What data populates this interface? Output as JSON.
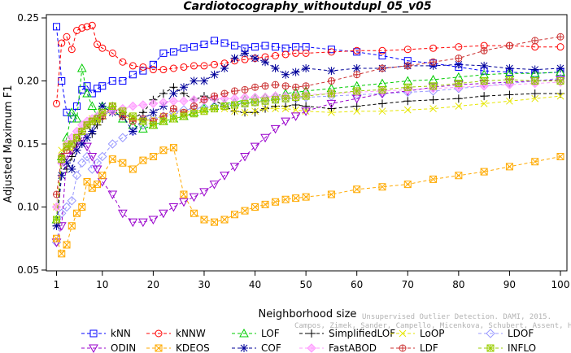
{
  "chart_data": {
    "type": "line",
    "title": "Cardiotocography_withoutdupl_05_v05",
    "xlabel": "Neighborhood size",
    "ylabel": "Adjusted Maximum F1",
    "xlim": [
      1,
      100
    ],
    "ylim": [
      0.05,
      0.25
    ],
    "xticks": [
      1,
      10,
      20,
      30,
      40,
      50,
      60,
      70,
      80,
      90,
      100
    ],
    "yticks": [
      0.05,
      0.1,
      0.15,
      0.2,
      0.25
    ],
    "xtick_labels": [
      "1",
      "10",
      "20",
      "30",
      "40",
      "50",
      "60",
      "70",
      "80",
      "90",
      "100"
    ],
    "ytick_labels": [
      "0.05",
      "0.10",
      "0.15",
      "0.20",
      "0.25"
    ],
    "grid": false,
    "legend_position": "bottom",
    "watermark": {
      "line1": "Unsupervised Outlier Detection. DAMI, 2015.",
      "line2": "Campos, Zimek, Sander, Campello, Micenkova, Schubert, Assent, Houle"
    },
    "series": [
      {
        "name": "kNN",
        "color": "#0000ff",
        "marker": "square",
        "x": [
          1,
          2,
          3,
          4,
          5,
          6,
          7,
          8,
          9,
          10,
          12,
          14,
          16,
          18,
          20,
          22,
          24,
          26,
          28,
          30,
          32,
          34,
          36,
          38,
          40,
          42,
          44,
          46,
          48,
          50,
          55,
          60,
          65,
          70,
          75,
          80,
          85,
          90,
          95,
          100
        ],
        "values": [
          0.243,
          0.2,
          0.175,
          0.17,
          0.18,
          0.193,
          0.196,
          0.19,
          0.194,
          0.196,
          0.2,
          0.2,
          0.205,
          0.208,
          0.213,
          0.222,
          0.223,
          0.226,
          0.227,
          0.229,
          0.232,
          0.23,
          0.228,
          0.226,
          0.227,
          0.228,
          0.227,
          0.226,
          0.227,
          0.227,
          0.225,
          0.223,
          0.22,
          0.216,
          0.214,
          0.211,
          0.208,
          0.207,
          0.206,
          0.207
        ]
      },
      {
        "name": "kNNW",
        "color": "#ff0000",
        "marker": "circle",
        "x": [
          1,
          2,
          3,
          4,
          5,
          6,
          7,
          8,
          9,
          10,
          12,
          14,
          16,
          18,
          20,
          22,
          24,
          26,
          28,
          30,
          32,
          34,
          36,
          38,
          40,
          42,
          44,
          46,
          48,
          50,
          55,
          60,
          65,
          70,
          75,
          80,
          85,
          90,
          95,
          100
        ],
        "values": [
          0.182,
          0.23,
          0.235,
          0.225,
          0.24,
          0.242,
          0.243,
          0.244,
          0.229,
          0.226,
          0.222,
          0.215,
          0.212,
          0.211,
          0.209,
          0.209,
          0.21,
          0.211,
          0.212,
          0.212,
          0.213,
          0.214,
          0.216,
          0.217,
          0.218,
          0.219,
          0.22,
          0.221,
          0.222,
          0.222,
          0.223,
          0.224,
          0.224,
          0.225,
          0.226,
          0.227,
          0.228,
          0.228,
          0.227,
          0.227
        ]
      },
      {
        "name": "LOF",
        "color": "#00cc00",
        "marker": "triangle-up",
        "x": [
          1,
          2,
          3,
          4,
          5,
          6,
          7,
          8,
          9,
          10,
          12,
          14,
          16,
          18,
          20,
          22,
          24,
          26,
          28,
          30,
          32,
          34,
          36,
          38,
          40,
          42,
          44,
          46,
          48,
          50,
          55,
          60,
          65,
          70,
          75,
          80,
          85,
          90,
          95,
          100
        ],
        "values": [
          0.09,
          0.14,
          0.155,
          0.175,
          0.17,
          0.21,
          0.19,
          0.18,
          0.172,
          0.18,
          0.178,
          0.17,
          0.165,
          0.162,
          0.165,
          0.168,
          0.17,
          0.172,
          0.175,
          0.178,
          0.18,
          0.182,
          0.183,
          0.185,
          0.186,
          0.187,
          0.188,
          0.19,
          0.191,
          0.192,
          0.194,
          0.196,
          0.198,
          0.2,
          0.201,
          0.203,
          0.205,
          0.206,
          0.206,
          0.207
        ]
      },
      {
        "name": "SimplifiedLOF",
        "color": "#000000",
        "marker": "plus",
        "x": [
          1,
          2,
          3,
          4,
          5,
          6,
          7,
          8,
          9,
          10,
          12,
          14,
          16,
          18,
          20,
          22,
          24,
          26,
          28,
          30,
          32,
          34,
          36,
          38,
          40,
          42,
          44,
          46,
          48,
          50,
          55,
          60,
          65,
          70,
          75,
          80,
          85,
          90,
          95,
          100
        ],
        "values": [
          0.085,
          0.135,
          0.13,
          0.14,
          0.15,
          0.16,
          0.165,
          0.158,
          0.165,
          0.17,
          0.18,
          0.175,
          0.17,
          0.175,
          0.185,
          0.19,
          0.195,
          0.19,
          0.185,
          0.188,
          0.185,
          0.18,
          0.176,
          0.175,
          0.175,
          0.178,
          0.18,
          0.18,
          0.181,
          0.18,
          0.178,
          0.18,
          0.182,
          0.184,
          0.185,
          0.186,
          0.188,
          0.189,
          0.19,
          0.19
        ]
      },
      {
        "name": "LoOP",
        "color": "#e6e600",
        "marker": "cross",
        "x": [
          1,
          2,
          3,
          4,
          5,
          6,
          7,
          8,
          9,
          10,
          12,
          14,
          16,
          18,
          20,
          22,
          24,
          26,
          28,
          30,
          32,
          34,
          36,
          38,
          40,
          42,
          44,
          46,
          48,
          50,
          55,
          60,
          65,
          70,
          75,
          80,
          85,
          90,
          95,
          100
        ],
        "values": [
          0.1,
          0.145,
          0.15,
          0.145,
          0.155,
          0.16,
          0.165,
          0.17,
          0.168,
          0.172,
          0.175,
          0.172,
          0.17,
          0.168,
          0.17,
          0.172,
          0.174,
          0.175,
          0.176,
          0.177,
          0.178,
          0.178,
          0.176,
          0.175,
          0.176,
          0.178,
          0.178,
          0.178,
          0.177,
          0.176,
          0.175,
          0.176,
          0.176,
          0.177,
          0.178,
          0.18,
          0.182,
          0.184,
          0.186,
          0.188
        ]
      },
      {
        "name": "LDOF",
        "color": "#9999ff",
        "marker": "diamond",
        "x": [
          1,
          2,
          3,
          4,
          5,
          6,
          7,
          8,
          9,
          10,
          12,
          14,
          16,
          18,
          20,
          22,
          24,
          26,
          28,
          30,
          32,
          34,
          36,
          38,
          40,
          42,
          44,
          46,
          48,
          50,
          55,
          60,
          65,
          70,
          75,
          80,
          85,
          90,
          95,
          100
        ],
        "values": [
          0.072,
          0.095,
          0.1,
          0.105,
          0.125,
          0.135,
          0.14,
          0.13,
          0.135,
          0.14,
          0.15,
          0.155,
          0.16,
          0.165,
          0.17,
          0.172,
          0.175,
          0.177,
          0.178,
          0.179,
          0.18,
          0.181,
          0.182,
          0.182,
          0.183,
          0.184,
          0.185,
          0.186,
          0.186,
          0.187,
          0.188,
          0.189,
          0.19,
          0.191,
          0.192,
          0.194,
          0.196,
          0.198,
          0.2,
          0.202
        ]
      },
      {
        "name": "ODIN",
        "color": "#9900cc",
        "marker": "triangle-down",
        "x": [
          1,
          2,
          3,
          4,
          5,
          6,
          7,
          8,
          9,
          10,
          12,
          14,
          16,
          18,
          20,
          22,
          24,
          26,
          28,
          30,
          32,
          34,
          36,
          38,
          40,
          42,
          44,
          46,
          48,
          50,
          55,
          60,
          65,
          70,
          75,
          80,
          85,
          90,
          95,
          100
        ],
        "values": [
          0.072,
          0.085,
          0.14,
          0.145,
          0.15,
          0.155,
          0.148,
          0.14,
          0.13,
          0.12,
          0.11,
          0.095,
          0.088,
          0.088,
          0.09,
          0.095,
          0.1,
          0.104,
          0.108,
          0.112,
          0.118,
          0.125,
          0.132,
          0.14,
          0.148,
          0.155,
          0.162,
          0.168,
          0.172,
          0.176,
          0.182,
          0.186,
          0.19,
          0.192,
          0.195,
          0.197,
          0.198,
          0.199,
          0.2,
          0.201
        ]
      },
      {
        "name": "KDEOS",
        "color": "#ffaa00",
        "marker": "square-x",
        "x": [
          1,
          2,
          3,
          4,
          5,
          6,
          7,
          8,
          9,
          10,
          12,
          14,
          16,
          18,
          20,
          22,
          24,
          26,
          28,
          30,
          32,
          34,
          36,
          38,
          40,
          42,
          44,
          46,
          48,
          50,
          55,
          60,
          65,
          70,
          75,
          80,
          85,
          90,
          95,
          100
        ],
        "values": [
          0.075,
          0.063,
          0.07,
          0.085,
          0.095,
          0.1,
          0.12,
          0.115,
          0.118,
          0.125,
          0.138,
          0.135,
          0.13,
          0.137,
          0.14,
          0.145,
          0.147,
          0.11,
          0.095,
          0.09,
          0.088,
          0.09,
          0.094,
          0.097,
          0.1,
          0.102,
          0.104,
          0.106,
          0.107,
          0.108,
          0.11,
          0.114,
          0.116,
          0.118,
          0.122,
          0.125,
          0.128,
          0.132,
          0.136,
          0.14
        ]
      },
      {
        "name": "COF",
        "color": "#000099",
        "marker": "asterisk",
        "x": [
          1,
          2,
          3,
          4,
          5,
          6,
          7,
          8,
          9,
          10,
          12,
          14,
          16,
          18,
          20,
          22,
          24,
          26,
          28,
          30,
          32,
          34,
          36,
          38,
          40,
          42,
          44,
          46,
          48,
          50,
          55,
          60,
          65,
          70,
          75,
          80,
          85,
          90,
          95,
          100
        ],
        "values": [
          0.085,
          0.125,
          0.135,
          0.13,
          0.145,
          0.15,
          0.155,
          0.16,
          0.17,
          0.18,
          0.175,
          0.172,
          0.16,
          0.17,
          0.175,
          0.18,
          0.19,
          0.195,
          0.2,
          0.2,
          0.205,
          0.21,
          0.218,
          0.222,
          0.218,
          0.215,
          0.21,
          0.205,
          0.207,
          0.21,
          0.208,
          0.21,
          0.21,
          0.212,
          0.212,
          0.213,
          0.212,
          0.21,
          0.209,
          0.21
        ]
      },
      {
        "name": "FastABOD",
        "color": "#ff99ff",
        "marker": "diamond-filled",
        "x": [
          1,
          2,
          3,
          4,
          5,
          6,
          7,
          8,
          9,
          10,
          12,
          14,
          16,
          18,
          20,
          22,
          24,
          26,
          28,
          30,
          32,
          34,
          36,
          38,
          40,
          42,
          44,
          46,
          48,
          50,
          55,
          60,
          65,
          70,
          75,
          80,
          85,
          90,
          95,
          100
        ],
        "values": [
          0.1,
          0.135,
          0.15,
          0.155,
          0.16,
          0.165,
          0.168,
          0.17,
          0.172,
          0.174,
          0.176,
          0.178,
          0.18,
          0.181,
          0.182,
          0.183,
          0.184,
          0.184,
          0.185,
          0.185,
          0.186,
          0.186,
          0.186,
          0.187,
          0.187,
          0.187,
          0.188,
          0.188,
          0.188,
          0.189,
          0.19,
          0.191,
          0.192,
          0.193,
          0.194,
          0.195,
          0.196,
          0.197,
          0.198,
          0.199
        ]
      },
      {
        "name": "LDF",
        "color": "#cc3333",
        "marker": "circle-plus",
        "x": [
          1,
          2,
          3,
          4,
          5,
          6,
          7,
          8,
          9,
          10,
          12,
          14,
          16,
          18,
          20,
          22,
          24,
          26,
          28,
          30,
          32,
          34,
          36,
          38,
          40,
          42,
          44,
          46,
          48,
          50,
          55,
          60,
          65,
          70,
          75,
          80,
          85,
          90,
          95,
          100
        ],
        "values": [
          0.11,
          0.14,
          0.145,
          0.15,
          0.155,
          0.16,
          0.165,
          0.168,
          0.17,
          0.172,
          0.18,
          0.172,
          0.168,
          0.17,
          0.168,
          0.172,
          0.178,
          0.175,
          0.18,
          0.185,
          0.188,
          0.19,
          0.192,
          0.193,
          0.195,
          0.196,
          0.197,
          0.196,
          0.195,
          0.196,
          0.2,
          0.205,
          0.21,
          0.212,
          0.215,
          0.218,
          0.224,
          0.228,
          0.232,
          0.235
        ]
      },
      {
        "name": "INFLO",
        "color": "#99cc00",
        "marker": "square-star",
        "x": [
          1,
          2,
          3,
          4,
          5,
          6,
          7,
          8,
          9,
          10,
          12,
          14,
          16,
          18,
          20,
          22,
          24,
          26,
          28,
          30,
          32,
          34,
          36,
          38,
          40,
          42,
          44,
          46,
          48,
          50,
          55,
          60,
          65,
          70,
          75,
          80,
          85,
          90,
          95,
          100
        ],
        "values": [
          0.09,
          0.138,
          0.148,
          0.15,
          0.155,
          0.16,
          0.165,
          0.168,
          0.17,
          0.175,
          0.18,
          0.176,
          0.172,
          0.168,
          0.165,
          0.168,
          0.17,
          0.172,
          0.174,
          0.176,
          0.178,
          0.18,
          0.181,
          0.182,
          0.183,
          0.184,
          0.185,
          0.186,
          0.187,
          0.188,
          0.19,
          0.192,
          0.193,
          0.195,
          0.196,
          0.198,
          0.2,
          0.201,
          0.2,
          0.2
        ]
      }
    ]
  }
}
